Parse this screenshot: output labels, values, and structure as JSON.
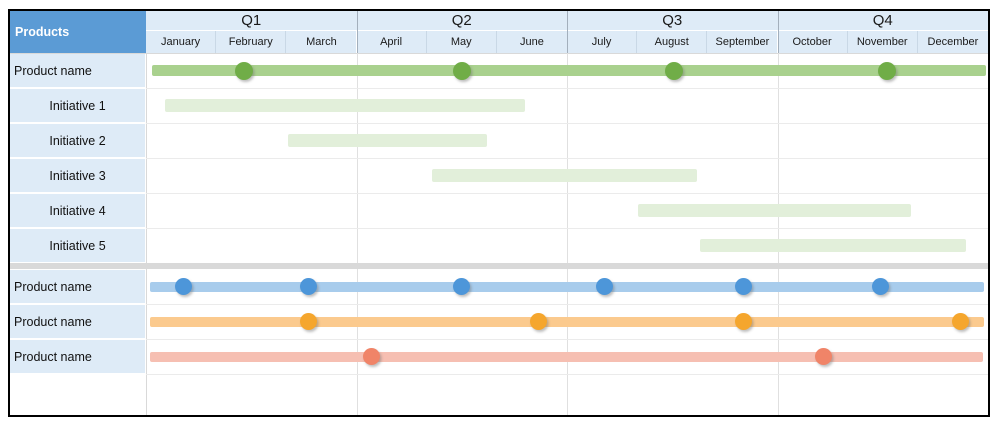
{
  "colors": {
    "table_border": "#000000",
    "corner_bg": "#5B9BD5",
    "corner_text": "#FFFFFF",
    "header_bg": "#DEEBF7",
    "label_bg": "#DEEBF7",
    "divider": "#D9D9D9",
    "grid_quarter_header": "#A3AFBC",
    "grid_quarter_body": "#E0E0E0",
    "grid_label_boundary": "#D9D9D9",
    "grid_row_line": "#EBEBEB",
    "header_month_separator": "#C9D8E6",
    "series": {
      "green": {
        "bar": "#A9D18E",
        "dot": "#70AD47"
      },
      "blue": {
        "bar": "#A8CCEC",
        "dot": "#4D96D9"
      },
      "orange": {
        "bar": "#FBCA8E",
        "dot": "#F5A62D"
      },
      "red": {
        "bar": "#F6BFB2",
        "dot": "#F08468"
      },
      "initiative": {
        "bar": "#E2EFDA"
      }
    }
  },
  "chart_data": {
    "type": "gantt",
    "title": "Products",
    "quarters": [
      "Q1",
      "Q2",
      "Q3",
      "Q4"
    ],
    "months": [
      "January",
      "February",
      "March",
      "April",
      "May",
      "June",
      "July",
      "August",
      "September",
      "October",
      "November",
      "December"
    ],
    "axis_note": "positions in month units, 0 = start of January, 12 = end of December",
    "legend": "none",
    "grid": "quarter boundaries + row lines",
    "rows": [
      {
        "label": "Product name",
        "kind": "product",
        "series": "green",
        "bar_start": 0.08,
        "bar_end": 11.97,
        "milestones": [
          1.4,
          4.5,
          7.52,
          10.56
        ]
      },
      {
        "label": "Initiative 1",
        "kind": "initiative",
        "series": "initiative",
        "bar_start": 0.27,
        "bar_end": 5.4,
        "milestones": []
      },
      {
        "label": "Initiative 2",
        "kind": "initiative",
        "series": "initiative",
        "bar_start": 2.02,
        "bar_end": 4.86,
        "milestones": []
      },
      {
        "label": "Initiative 3",
        "kind": "initiative",
        "series": "initiative",
        "bar_start": 4.08,
        "bar_end": 7.85,
        "milestones": []
      },
      {
        "label": "Initiative 4",
        "kind": "initiative",
        "series": "initiative",
        "bar_start": 7.01,
        "bar_end": 10.9,
        "milestones": []
      },
      {
        "label": "Initiative 5",
        "kind": "initiative",
        "series": "initiative",
        "bar_start": 7.89,
        "bar_end": 11.69,
        "milestones": []
      },
      {
        "divider": true
      },
      {
        "label": "Product name",
        "kind": "product",
        "series": "blue",
        "bar_start": 0.06,
        "bar_end": 11.94,
        "milestones": [
          0.53,
          2.31,
          4.49,
          6.54,
          8.51,
          10.47
        ]
      },
      {
        "label": "Product name",
        "kind": "product",
        "series": "orange",
        "bar_start": 0.06,
        "bar_end": 11.94,
        "milestones": [
          2.31,
          5.59,
          8.51,
          11.61
        ]
      },
      {
        "label": "Product name",
        "kind": "product",
        "series": "red",
        "bar_start": 0.06,
        "bar_end": 11.93,
        "milestones": [
          3.22,
          9.65
        ]
      }
    ]
  }
}
